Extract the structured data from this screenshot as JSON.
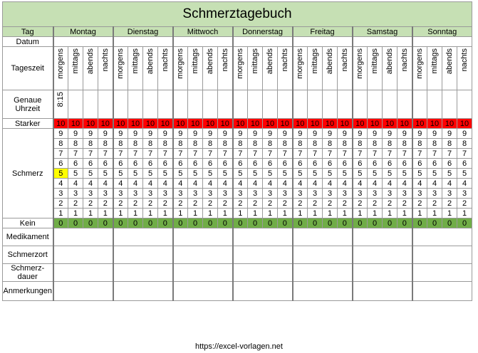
{
  "title": "Schmerztagebuch",
  "header_label": "Tag",
  "days": [
    "Montag",
    "Dienstag",
    "Mittwoch",
    "Donnerstag",
    "Freitag",
    "Samstag",
    "Sonntag"
  ],
  "rows": {
    "datum": "Datum",
    "tageszeit": "Tageszeit",
    "uhrzeit": "Genaue Uhrzeit",
    "schmerz": "Schmerz",
    "starker": "Starker",
    "kein": "Kein",
    "medikament": "Medikament",
    "schmerzort": "Schmerzort",
    "dauer": "Schmerz-dauer",
    "anmerkungen": "Anmerkungen"
  },
  "times_of_day": [
    "morgens",
    "mittags",
    "abends",
    "nachts"
  ],
  "first_time_entry": "8:15",
  "scale": [
    "10",
    "9",
    "8",
    "7",
    "6",
    "5",
    "4",
    "3",
    "2",
    "1",
    "0"
  ],
  "highlighted": {
    "day": 0,
    "slot": 0,
    "value": "5"
  },
  "colors": {
    "header_green": "#c6e0b4",
    "max_red": "#ff0000",
    "none_green": "#70ad47",
    "highlight_yellow": "#ffff00"
  },
  "footer": "https://excel-vorlagen.net"
}
